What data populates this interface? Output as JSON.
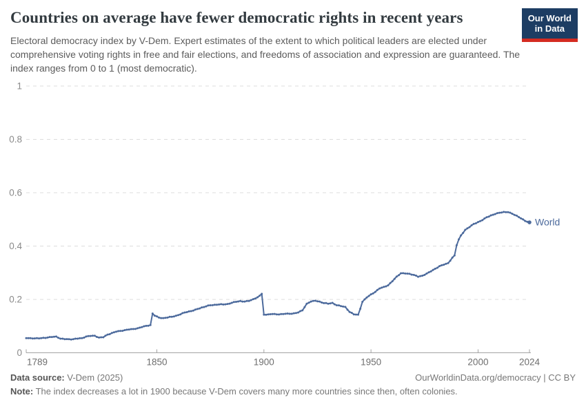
{
  "header": {
    "title": "Countries on average have fewer democratic rights in recent years",
    "subtitle": "Electoral democracy index by V-Dem. Expert estimates of the extent to which political leaders are elected under comprehensive voting rights in free and fair elections, and freedoms of association and expression are guaranteed. The index ranges from 0 to 1 (most democratic).",
    "logo": {
      "line1": "Our World",
      "line2": "in Data"
    }
  },
  "chart_data": {
    "type": "line",
    "title": "Countries on average have fewer democratic rights in recent years",
    "subtitle": "Electoral democracy index by V-Dem. The index ranges from 0 to 1 (most democratic).",
    "xlabel": "",
    "ylabel": "",
    "xlim": [
      1789,
      2024
    ],
    "ylim": [
      0,
      1
    ],
    "xticks": [
      1789,
      1850,
      1900,
      1950,
      2000,
      2024
    ],
    "yticks": [
      0,
      0.2,
      0.4,
      0.6,
      0.8,
      1
    ],
    "grid": "horizontal-dashed",
    "legend_position": "end-of-line-label",
    "series": [
      {
        "name": "World",
        "color": "#4c6a9c",
        "points": [
          [
            1789,
            0.055
          ],
          [
            1791,
            0.055
          ],
          [
            1793,
            0.054
          ],
          [
            1795,
            0.054
          ],
          [
            1797,
            0.056
          ],
          [
            1799,
            0.057
          ],
          [
            1801,
            0.059
          ],
          [
            1803,
            0.061
          ],
          [
            1805,
            0.053
          ],
          [
            1807,
            0.051
          ],
          [
            1809,
            0.051
          ],
          [
            1811,
            0.051
          ],
          [
            1813,
            0.053
          ],
          [
            1815,
            0.055
          ],
          [
            1817,
            0.061
          ],
          [
            1819,
            0.063
          ],
          [
            1821,
            0.064
          ],
          [
            1823,
            0.057
          ],
          [
            1825,
            0.058
          ],
          [
            1827,
            0.068
          ],
          [
            1829,
            0.074
          ],
          [
            1831,
            0.079
          ],
          [
            1833,
            0.082
          ],
          [
            1835,
            0.085
          ],
          [
            1837,
            0.087
          ],
          [
            1839,
            0.089
          ],
          [
            1841,
            0.092
          ],
          [
            1843,
            0.096
          ],
          [
            1845,
            0.101
          ],
          [
            1847,
            0.104
          ],
          [
            1848,
            0.147
          ],
          [
            1849,
            0.139
          ],
          [
            1851,
            0.132
          ],
          [
            1853,
            0.13
          ],
          [
            1855,
            0.132
          ],
          [
            1857,
            0.135
          ],
          [
            1859,
            0.139
          ],
          [
            1861,
            0.144
          ],
          [
            1863,
            0.151
          ],
          [
            1865,
            0.155
          ],
          [
            1867,
            0.158
          ],
          [
            1869,
            0.164
          ],
          [
            1871,
            0.17
          ],
          [
            1873,
            0.174
          ],
          [
            1875,
            0.178
          ],
          [
            1877,
            0.18
          ],
          [
            1879,
            0.181
          ],
          [
            1881,
            0.181
          ],
          [
            1883,
            0.183
          ],
          [
            1885,
            0.187
          ],
          [
            1887,
            0.191
          ],
          [
            1889,
            0.194
          ],
          [
            1891,
            0.192
          ],
          [
            1893,
            0.194
          ],
          [
            1895,
            0.201
          ],
          [
            1897,
            0.208
          ],
          [
            1898,
            0.214
          ],
          [
            1899,
            0.221
          ],
          [
            1900,
            0.143
          ],
          [
            1902,
            0.144
          ],
          [
            1904,
            0.145
          ],
          [
            1906,
            0.144
          ],
          [
            1908,
            0.145
          ],
          [
            1910,
            0.146
          ],
          [
            1912,
            0.146
          ],
          [
            1914,
            0.148
          ],
          [
            1916,
            0.151
          ],
          [
            1918,
            0.159
          ],
          [
            1920,
            0.184
          ],
          [
            1922,
            0.192
          ],
          [
            1924,
            0.195
          ],
          [
            1926,
            0.192
          ],
          [
            1928,
            0.186
          ],
          [
            1930,
            0.184
          ],
          [
            1932,
            0.187
          ],
          [
            1934,
            0.178
          ],
          [
            1936,
            0.175
          ],
          [
            1938,
            0.172
          ],
          [
            1940,
            0.153
          ],
          [
            1942,
            0.144
          ],
          [
            1944,
            0.143
          ],
          [
            1945,
            0.165
          ],
          [
            1946,
            0.191
          ],
          [
            1948,
            0.207
          ],
          [
            1950,
            0.219
          ],
          [
            1952,
            0.228
          ],
          [
            1954,
            0.241
          ],
          [
            1956,
            0.247
          ],
          [
            1958,
            0.253
          ],
          [
            1960,
            0.268
          ],
          [
            1962,
            0.286
          ],
          [
            1964,
            0.298
          ],
          [
            1966,
            0.297
          ],
          [
            1968,
            0.296
          ],
          [
            1970,
            0.292
          ],
          [
            1972,
            0.285
          ],
          [
            1974,
            0.289
          ],
          [
            1976,
            0.297
          ],
          [
            1978,
            0.305
          ],
          [
            1980,
            0.315
          ],
          [
            1982,
            0.325
          ],
          [
            1984,
            0.33
          ],
          [
            1986,
            0.336
          ],
          [
            1988,
            0.357
          ],
          [
            1989,
            0.365
          ],
          [
            1990,
            0.403
          ],
          [
            1991,
            0.425
          ],
          [
            1992,
            0.44
          ],
          [
            1994,
            0.461
          ],
          [
            1996,
            0.471
          ],
          [
            1998,
            0.483
          ],
          [
            2000,
            0.49
          ],
          [
            2002,
            0.497
          ],
          [
            2004,
            0.508
          ],
          [
            2006,
            0.515
          ],
          [
            2008,
            0.52
          ],
          [
            2010,
            0.525
          ],
          [
            2012,
            0.528
          ],
          [
            2014,
            0.527
          ],
          [
            2016,
            0.521
          ],
          [
            2018,
            0.514
          ],
          [
            2020,
            0.504
          ],
          [
            2022,
            0.494
          ],
          [
            2024,
            0.489
          ]
        ]
      }
    ],
    "end_label": "World"
  },
  "footer": {
    "datasource_label": "Data source:",
    "datasource_value": "V-Dem (2025)",
    "license": "OurWorldinData.org/democracy | CC BY",
    "note_label": "Note:",
    "note_value": "The index decreases a lot in 1900 because V-Dem covers many more countries since then, often colonies."
  },
  "colors": {
    "line": "#4c6a9c",
    "grid": "#dcdcdc",
    "axis": "#a3a3a3",
    "x_tick_text": "#6e6e6e",
    "y_tick_text": "#8a8a8a",
    "logo_bg": "#1d3d63",
    "logo_red": "#d42b21"
  }
}
